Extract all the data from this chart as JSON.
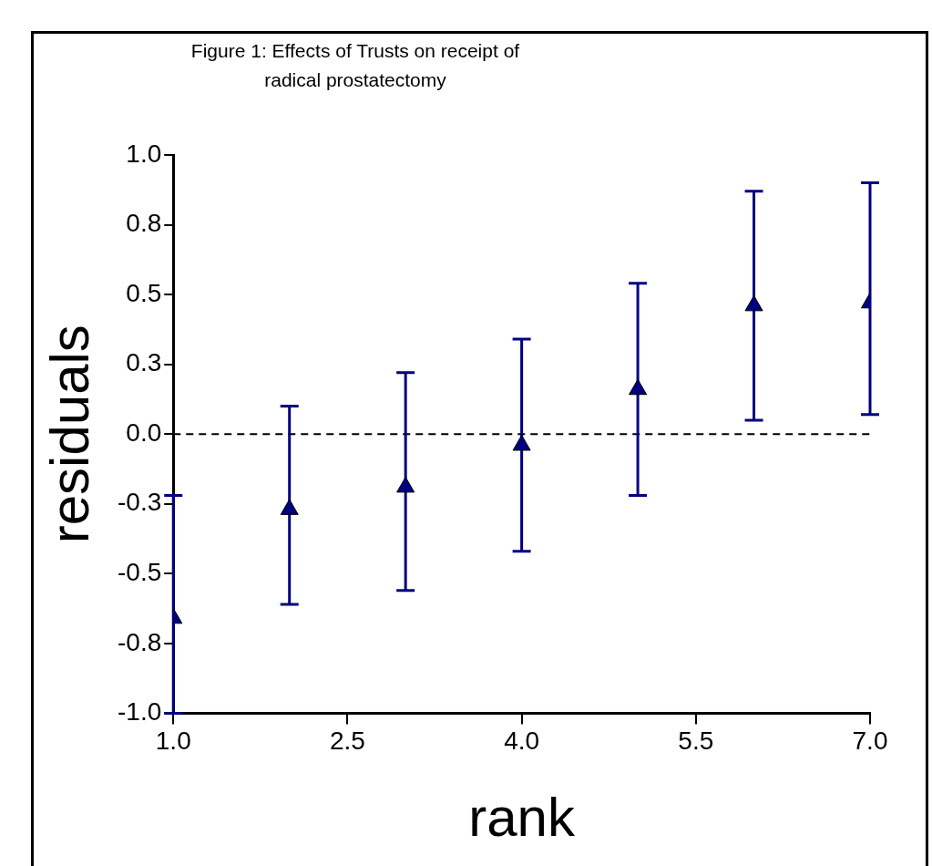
{
  "chart_data": {
    "type": "scatter",
    "title": "Figure 1: Effects of Trusts on receipt of radical prostatectomy",
    "xlabel": "rank",
    "ylabel": "residuals",
    "x": [
      1,
      2,
      3,
      4,
      5,
      6,
      7
    ],
    "values": [
      -0.66,
      -0.27,
      -0.19,
      -0.04,
      0.16,
      0.46,
      0.47
    ],
    "errors": [
      [
        -1.0,
        -0.22
      ],
      [
        -0.61,
        0.1
      ],
      [
        -0.56,
        0.22
      ],
      [
        -0.42,
        0.34
      ],
      [
        -0.22,
        0.54
      ],
      [
        0.05,
        0.87
      ],
      [
        0.07,
        0.9
      ]
    ],
    "color": "#000080",
    "marker": "triangle",
    "grid": false,
    "legend": false,
    "xlim": [
      1,
      7
    ],
    "xticks": [
      {
        "value": 1,
        "label": "1.0"
      },
      {
        "value": 2.5,
        "label": "2.5"
      },
      {
        "value": 4,
        "label": "4.0"
      },
      {
        "value": 5.5,
        "label": "5.5"
      },
      {
        "value": 7,
        "label": "7.0"
      }
    ],
    "ylim": [
      -1,
      1
    ],
    "yticks": [
      {
        "value": -1,
        "label": "-1.0"
      },
      {
        "value": -0.75,
        "label": "-0.8"
      },
      {
        "value": -0.5,
        "label": "-0.5"
      },
      {
        "value": -0.25,
        "label": "-0.3"
      },
      {
        "value": 0,
        "label": "0.0"
      },
      {
        "value": 0.25,
        "label": "0.3"
      },
      {
        "value": 0.5,
        "label": "0.5"
      },
      {
        "value": 0.75,
        "label": "0.8"
      },
      {
        "value": 1,
        "label": "1.0"
      }
    ],
    "ref_lines": [
      {
        "axis": "y",
        "value": 0,
        "color": "#000000",
        "line_style": "dashed"
      }
    ]
  }
}
